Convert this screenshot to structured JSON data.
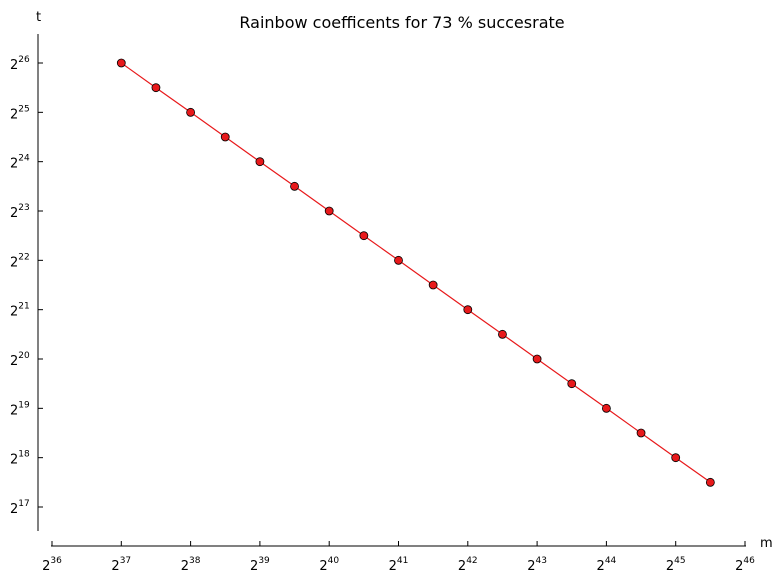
{
  "chart_data": {
    "type": "line",
    "title": "Rainbow coefficents for 73 % succesrate",
    "xlabel": "m",
    "ylabel": "t",
    "x_scale": "log2",
    "y_scale": "log2",
    "xlim": [
      36,
      46
    ],
    "ylim": [
      16.3,
      26.6
    ],
    "grid": false,
    "x_ticks": [
      {
        "base": "2",
        "exp": "36"
      },
      {
        "base": "2",
        "exp": "37"
      },
      {
        "base": "2",
        "exp": "38"
      },
      {
        "base": "2",
        "exp": "39"
      },
      {
        "base": "2",
        "exp": "40"
      },
      {
        "base": "2",
        "exp": "41"
      },
      {
        "base": "2",
        "exp": "42"
      },
      {
        "base": "2",
        "exp": "43"
      },
      {
        "base": "2",
        "exp": "44"
      },
      {
        "base": "2",
        "exp": "45"
      },
      {
        "base": "2",
        "exp": "46"
      }
    ],
    "y_ticks": [
      {
        "base": "2",
        "exp": "17"
      },
      {
        "base": "2",
        "exp": "18"
      },
      {
        "base": "2",
        "exp": "19"
      },
      {
        "base": "2",
        "exp": "20"
      },
      {
        "base": "2",
        "exp": "21"
      },
      {
        "base": "2",
        "exp": "22"
      },
      {
        "base": "2",
        "exp": "23"
      },
      {
        "base": "2",
        "exp": "24"
      },
      {
        "base": "2",
        "exp": "25"
      },
      {
        "base": "2",
        "exp": "26"
      }
    ],
    "series": [
      {
        "color": "#e8191b",
        "marker_color": "#e8191b",
        "x_log2": [
          37,
          37.5,
          38,
          38.5,
          39,
          39.5,
          40,
          40.5,
          41,
          41.5,
          42,
          42.5,
          43,
          43.5,
          44,
          44.5,
          45,
          45.5
        ],
        "y_log2": [
          26,
          25.5,
          25,
          24.5,
          24,
          23.5,
          23,
          22.5,
          22,
          21.5,
          21,
          20.5,
          20,
          19.5,
          19,
          18.5,
          18,
          17.5
        ]
      }
    ]
  }
}
